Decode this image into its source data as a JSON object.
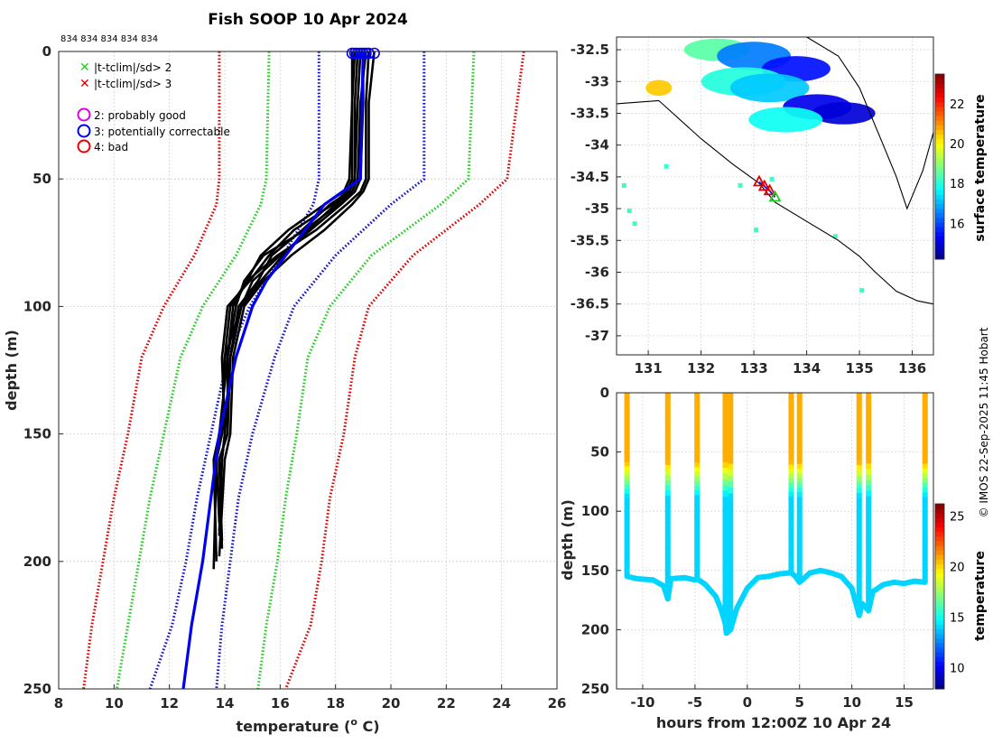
{
  "chart_data": [
    {
      "type": "line",
      "panel": "left",
      "title": "Fish SOOP 10 Apr 2024",
      "profile_ids": "834 834 834 834 834",
      "xlabel": "temperature (",
      "xlabel_sup": "o",
      "xlabel_unit": " C)",
      "ylabel": "depth (m)",
      "xlim": [
        8,
        26
      ],
      "ylim": [
        250,
        0
      ],
      "xticks": [
        "8",
        "10",
        "12",
        "14",
        "16",
        "18",
        "20",
        "22",
        "24",
        "26"
      ],
      "yticks": [
        "0",
        "50",
        "100",
        "150",
        "200",
        "250"
      ],
      "grid": true,
      "legend_qc_flags": [
        {
          "label": "|t-tclim|/sd> 2",
          "color": "#22cc22",
          "marker": "cross"
        },
        {
          "label": "|t-tclim|/sd> 3",
          "color": "#dd0000",
          "marker": "cross"
        }
      ],
      "legend_qc_codes": [
        {
          "label": "2: probably good",
          "color": "#dd00dd",
          "marker": "circle"
        },
        {
          "label": "3: potentially correctable",
          "color": "#0000ee",
          "marker": "circle"
        },
        {
          "label": "4: bad",
          "color": "#ee0000",
          "marker": "circle"
        }
      ],
      "climatology": {
        "depth": [
          0,
          50,
          60,
          80,
          100,
          120,
          150,
          175,
          200,
          225,
          250
        ],
        "series": [
          {
            "name": "clim -3sd",
            "color": "#dd0000",
            "values": [
              13.8,
              13.8,
              13.7,
              12.9,
              11.8,
              11.0,
              10.5,
              10.0,
              9.6,
              9.2,
              8.9
            ]
          },
          {
            "name": "clim -2sd",
            "color": "#22cc22",
            "values": [
              15.6,
              15.5,
              15.3,
              14.4,
              13.2,
              12.4,
              11.8,
              11.3,
              10.9,
              10.5,
              10.1
            ]
          },
          {
            "name": "clim -1sd",
            "color": "#1111cc",
            "values": [
              17.4,
              17.4,
              17.2,
              16.1,
              14.9,
              14.1,
              13.5,
              13.0,
              12.6,
              12.1,
              11.3
            ]
          },
          {
            "name": "clim +1sd",
            "color": "#1111cc",
            "values": [
              21.2,
              21.2,
              20.0,
              18.0,
              16.5,
              15.8,
              15.0,
              14.5,
              14.2,
              13.9,
              13.7
            ]
          },
          {
            "name": "clim +2sd",
            "color": "#22cc22",
            "values": [
              23.0,
              22.8,
              21.8,
              19.3,
              17.8,
              17.0,
              16.6,
              16.2,
              15.9,
              15.5,
              15.2
            ]
          },
          {
            "name": "clim +3sd",
            "color": "#dd0000",
            "values": [
              24.8,
              24.2,
              23.2,
              20.8,
              19.2,
              18.7,
              18.3,
              17.8,
              17.5,
              17.1,
              16.2
            ]
          }
        ],
        "mean": {
          "name": "climatology mean",
          "color": "#0000ee",
          "depth": [
            0,
            50,
            60,
            70,
            80,
            90,
            100,
            110,
            120,
            150,
            175,
            200,
            225,
            250
          ],
          "values": [
            19.0,
            18.9,
            17.6,
            16.9,
            16.2,
            15.5,
            15.0,
            14.7,
            14.4,
            13.8,
            13.5,
            13.2,
            12.8,
            12.5
          ]
        }
      },
      "profiles_color": "#000000",
      "profiles": [
        {
          "depth": [
            0,
            20,
            50,
            55,
            60,
            70,
            80,
            90,
            100,
            120,
            150,
            160,
            185
          ],
          "values": [
            18.6,
            18.6,
            18.5,
            18.3,
            17.6,
            16.3,
            15.3,
            14.8,
            14.2,
            14.0,
            13.9,
            13.7,
            13.8
          ]
        },
        {
          "depth": [
            0,
            20,
            50,
            55,
            60,
            70,
            80,
            90,
            100,
            120,
            150,
            160,
            190
          ],
          "values": [
            18.8,
            18.7,
            18.7,
            18.5,
            17.8,
            16.8,
            15.7,
            15.2,
            14.5,
            14.2,
            14.0,
            13.9,
            13.8
          ]
        },
        {
          "depth": [
            0,
            20,
            50,
            55,
            60,
            70,
            80,
            90,
            100,
            120,
            150,
            160,
            195
          ],
          "values": [
            19.0,
            19.0,
            18.9,
            18.7,
            18.2,
            17.1,
            16.0,
            15.0,
            14.6,
            14.2,
            14.1,
            13.8,
            13.9
          ]
        },
        {
          "depth": [
            0,
            20,
            50,
            55,
            60,
            70,
            80,
            90,
            100,
            120,
            150,
            160,
            200
          ],
          "values": [
            19.2,
            19.1,
            19.1,
            18.9,
            18.4,
            17.3,
            15.9,
            14.8,
            14.3,
            14.1,
            13.8,
            13.6,
            13.7
          ]
        },
        {
          "depth": [
            0,
            20,
            50,
            55,
            60,
            70,
            80,
            90,
            100,
            120,
            150,
            160,
            198
          ],
          "values": [
            19.4,
            19.2,
            19.2,
            19.0,
            18.6,
            17.6,
            16.4,
            15.4,
            14.7,
            14.3,
            14.2,
            14.0,
            13.8
          ]
        },
        {
          "depth": [
            0,
            20,
            50,
            55,
            60,
            70,
            80,
            90,
            100,
            120,
            150,
            160,
            188
          ],
          "values": [
            18.7,
            18.6,
            18.6,
            18.4,
            17.9,
            16.5,
            15.6,
            14.9,
            14.1,
            13.9,
            14.0,
            13.9,
            13.8
          ]
        },
        {
          "depth": [
            0,
            20,
            50,
            55,
            60,
            70,
            80,
            90,
            100,
            120,
            150,
            160,
            192
          ],
          "values": [
            19.1,
            18.9,
            18.8,
            18.6,
            18.1,
            16.9,
            15.4,
            14.7,
            14.4,
            14.1,
            14.1,
            13.8,
            13.9
          ]
        },
        {
          "depth": [
            0,
            20,
            50,
            55,
            60,
            70,
            80,
            90,
            100,
            120,
            150,
            160,
            203
          ],
          "values": [
            18.9,
            18.8,
            18.7,
            18.5,
            18.0,
            17.0,
            16.1,
            15.3,
            14.6,
            14.0,
            13.9,
            13.7,
            13.6
          ]
        }
      ]
    },
    {
      "type": "scatter",
      "panel": "top-right map",
      "xlim": [
        130.4,
        136.4
      ],
      "ylim": [
        -37.3,
        -32.3
      ],
      "xticks": [
        "131",
        "132",
        "133",
        "134",
        "135",
        "136"
      ],
      "yticks": [
        "-32.5",
        "-33",
        "-33.5",
        "-34",
        "-34.5",
        "-35",
        "-35.5",
        "-36",
        "-36.5",
        "-37"
      ],
      "colorbar_label": "surface temperature",
      "colorbar_range": [
        14.2,
        23.5
      ],
      "colorbar_ticks": [
        "16",
        "18",
        "20",
        "22"
      ],
      "track": [
        {
          "lon": 133.1,
          "lat": -34.58
        },
        {
          "lon": 133.2,
          "lat": -34.65
        },
        {
          "lon": 133.3,
          "lat": -34.72
        },
        {
          "lon": 133.4,
          "lat": -34.82
        }
      ],
      "sst_patches": [
        {
          "lon": 132.3,
          "lat": -32.5,
          "value": 18.5
        },
        {
          "lon": 133.0,
          "lat": -32.6,
          "value": 16.5
        },
        {
          "lon": 133.8,
          "lat": -32.8,
          "value": 15.5
        },
        {
          "lon": 132.8,
          "lat": -33.0,
          "value": 18.0
        },
        {
          "lon": 133.3,
          "lat": -33.1,
          "value": 17.2
        },
        {
          "lon": 134.2,
          "lat": -33.4,
          "value": 15.2
        },
        {
          "lon": 134.7,
          "lat": -33.5,
          "value": 15.0
        },
        {
          "lon": 133.6,
          "lat": -33.6,
          "value": 17.8
        },
        {
          "lon": 131.2,
          "lat": -33.1,
          "value": 20.5
        }
      ],
      "coastline": [
        {
          "lon": 130.4,
          "lat": -33.35
        },
        {
          "lon": 131.2,
          "lat": -33.3
        },
        {
          "lon": 132.0,
          "lat": -33.9
        },
        {
          "lon": 132.6,
          "lat": -34.3
        },
        {
          "lon": 133.1,
          "lat": -34.6
        },
        {
          "lon": 133.4,
          "lat": -34.9
        },
        {
          "lon": 134.0,
          "lat": -35.2
        },
        {
          "lon": 134.6,
          "lat": -35.5
        },
        {
          "lon": 135.0,
          "lat": -35.75
        },
        {
          "lon": 135.3,
          "lat": -36.0
        },
        {
          "lon": 135.7,
          "lat": -36.3
        },
        {
          "lon": 136.1,
          "lat": -36.45
        },
        {
          "lon": 136.4,
          "lat": -36.5
        }
      ]
    },
    {
      "type": "scatter",
      "panel": "bottom-right",
      "xlabel": "hours from 12:00Z 10 Apr 24",
      "ylabel": "depth (m)",
      "xlim": [
        -12.5,
        17.8
      ],
      "ylim": [
        250,
        0
      ],
      "xticks": [
        "-10",
        "-5",
        "0",
        "5",
        "10",
        "15"
      ],
      "yticks": [
        "0",
        "50",
        "100",
        "150",
        "200",
        "250"
      ],
      "colorbar_label": "temperature",
      "colorbar_range": [
        7.9,
        26.2
      ],
      "colorbar_ticks": [
        "10",
        "15",
        "20",
        "25"
      ],
      "casts": [
        {
          "hour": -11.5,
          "max_depth": 155
        },
        {
          "hour": -7.6,
          "max_depth": 174
        },
        {
          "hour": -4.8,
          "max_depth": 157
        },
        {
          "hour": -2.1,
          "max_depth": 195
        },
        {
          "hour": -1.6,
          "max_depth": 200
        },
        {
          "hour": 4.2,
          "max_depth": 152
        },
        {
          "hour": 5.0,
          "max_depth": 160
        },
        {
          "hour": 10.7,
          "max_depth": 188
        },
        {
          "hour": 11.6,
          "max_depth": 184
        },
        {
          "hour": 17.0,
          "max_depth": 160
        }
      ],
      "bottom_track": {
        "hour": [
          -11.5,
          -10.5,
          -9,
          -8,
          -7.6,
          -7.3,
          -6,
          -5,
          -4.8,
          -4,
          -3,
          -2.5,
          -2.1,
          -2.0,
          -1.6,
          -1,
          0,
          1,
          2,
          3,
          4.2,
          4.6,
          5.0,
          6,
          7,
          8,
          9,
          10,
          10.7,
          11.0,
          11.6,
          12,
          13,
          14,
          15,
          16,
          17
        ],
        "depth": [
          155,
          157,
          158,
          163,
          174,
          157,
          156,
          158,
          157,
          162,
          172,
          183,
          195,
          203,
          200,
          182,
          165,
          156,
          155,
          153,
          152,
          155,
          160,
          152,
          150,
          152,
          155,
          165,
          188,
          178,
          184,
          168,
          162,
          160,
          161,
          159,
          160
        ]
      },
      "surface_temp": 20.8,
      "thermocline_depth": 68,
      "deep_temp": 14.0
    }
  ],
  "credit": "© IMOS 22-Sep-2025 11:45 Hobart"
}
